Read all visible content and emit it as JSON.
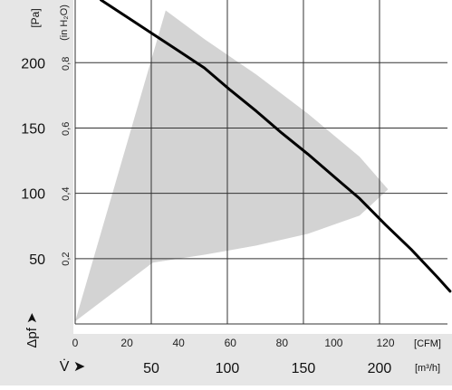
{
  "chart_data": {
    "type": "line",
    "x_primary": {
      "unit_label": "[CFM]",
      "ticks": [
        0,
        20,
        40,
        60,
        80,
        100,
        120
      ],
      "range": [
        0,
        144
      ]
    },
    "x_secondary": {
      "symbol": "V̇ ➤",
      "unit_label": "[m³/h]",
      "ticks": [
        50,
        100,
        150,
        200
      ]
    },
    "y_primary": {
      "symbol": "Δpf ➤",
      "unit_label": "[Pa]",
      "ticks": [
        50,
        100,
        150,
        200
      ],
      "range": [
        0,
        248
      ]
    },
    "y_secondary": {
      "unit_label": "(in H₂O)",
      "ticks": [
        "0,2",
        "0,4",
        "0,6",
        "0,8"
      ]
    },
    "series": [
      {
        "x": [
          10,
          20,
          30,
          40,
          50,
          60,
          70,
          80,
          90,
          100,
          110,
          120,
          130,
          140,
          145
        ],
        "y": [
          248,
          235,
          222,
          209,
          196,
          179,
          163,
          146,
          130,
          113,
          96,
          76,
          57,
          36,
          25
        ]
      }
    ],
    "operating_range": {
      "x": [
        0,
        35,
        50,
        70,
        90,
        110,
        121,
        110,
        90,
        70,
        50,
        30,
        0
      ],
      "y": [
        2,
        240,
        218,
        191,
        161,
        128,
        103,
        83,
        69,
        60,
        53,
        47,
        2
      ]
    },
    "grid": true,
    "colors": {
      "curve": "#000000",
      "range_fill": "#d3d3d3",
      "grid": "#333333",
      "axis_band": "#e6e6e6"
    }
  }
}
